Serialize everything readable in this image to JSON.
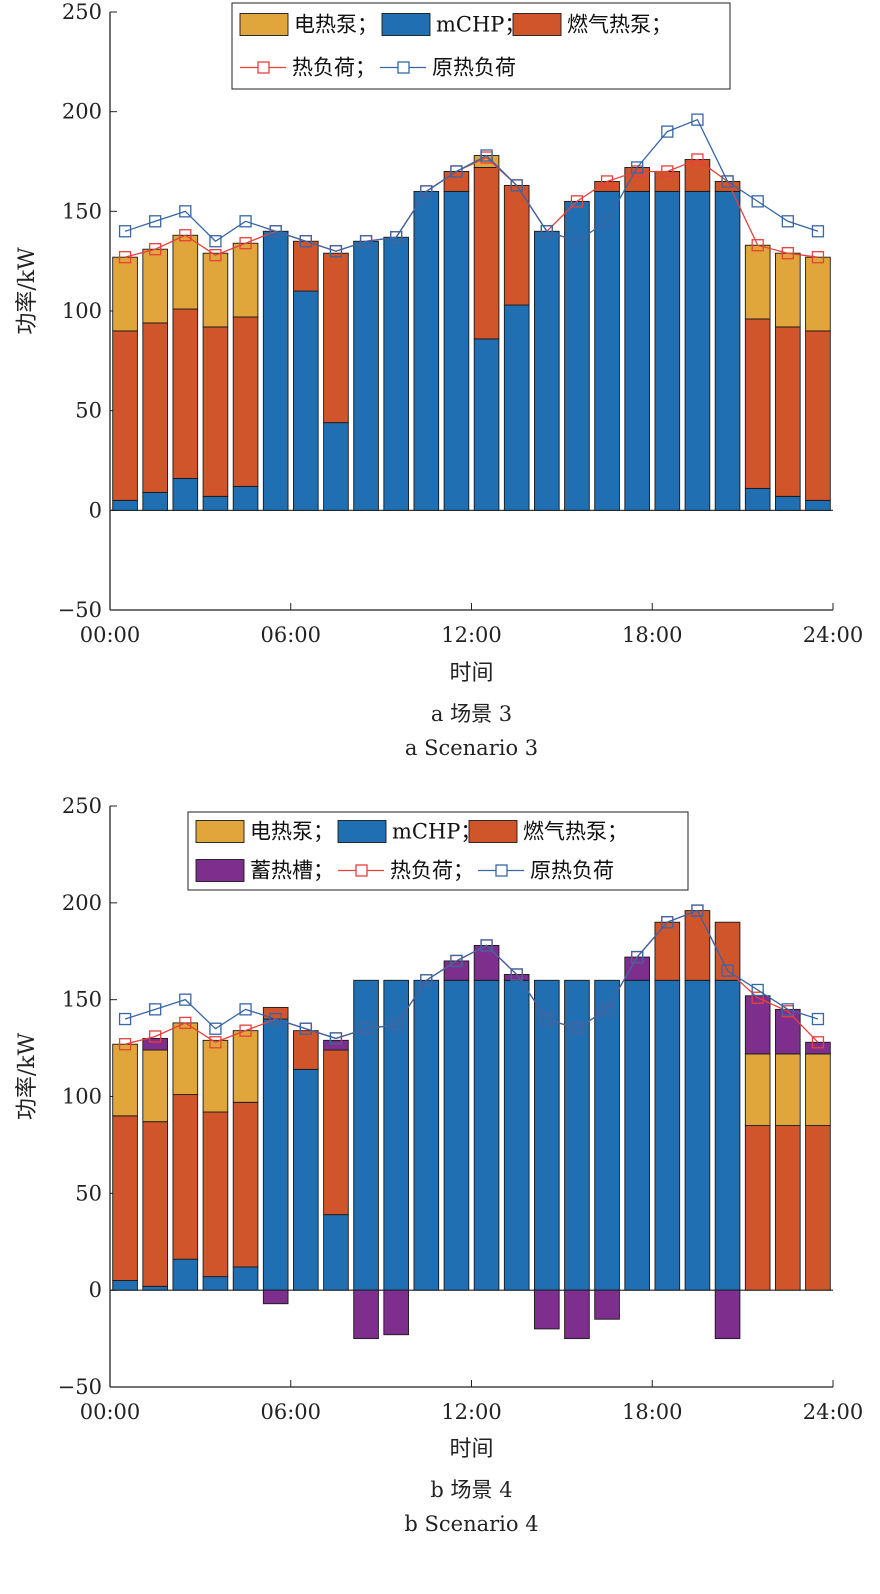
{
  "colors": {
    "electric_hp": "#E0A63C",
    "mchp": "#1F6FB2",
    "gas_hp": "#D1552A",
    "storage": "#7E2F8E",
    "heat_load_line": "#E8403A",
    "orig_load_line": "#3766A8"
  },
  "chart_data": [
    {
      "type": "bar",
      "stacked": true,
      "x_unit": "time of day",
      "xlabel": "时间",
      "ylabel": "功率/kW",
      "ylim": [
        -50,
        250
      ],
      "yticks": [
        "−50",
        "0",
        "50",
        "100",
        "150",
        "200",
        "250"
      ],
      "xticks": [
        "00:00",
        "06:00",
        "12:00",
        "18:00",
        "24:00"
      ],
      "caption_cn": "a  场景 3",
      "caption_en": "a  Scenario 3",
      "legend_position": "top-center",
      "legend_rows": [
        [
          {
            "key": "electric_hp",
            "label": "电热泵；",
            "kind": "bar"
          },
          {
            "key": "mchp",
            "label": "mCHP；",
            "kind": "bar"
          },
          {
            "key": "gas_hp",
            "label": "燃气热泵；",
            "kind": "bar"
          }
        ],
        [
          {
            "key": "heat_load",
            "label": "热负荷；",
            "kind": "line"
          },
          {
            "key": "orig_load",
            "label": "原热负荷",
            "kind": "line"
          }
        ]
      ],
      "hours": [
        0.5,
        1.5,
        2.5,
        3.5,
        4.5,
        5.5,
        6.5,
        7.5,
        8.5,
        9.5,
        10.5,
        11.5,
        12.5,
        13.5,
        14.5,
        15.5,
        16.5,
        17.5,
        18.5,
        19.5,
        20.5,
        21.5,
        22.5,
        23.5
      ],
      "series": [
        {
          "key": "mchp",
          "name": "mCHP",
          "values": [
            5,
            9,
            16,
            7,
            12,
            140,
            110,
            44,
            135,
            137,
            160,
            160,
            86,
            103,
            140,
            155,
            160,
            160,
            160,
            160,
            160,
            11,
            7,
            5
          ]
        },
        {
          "key": "gas_hp",
          "name": "燃气热泵",
          "values": [
            85,
            85,
            85,
            85,
            85,
            0,
            25,
            85,
            0,
            0,
            0,
            10,
            86,
            60,
            0,
            0,
            5,
            12,
            10,
            16,
            5,
            85,
            85,
            85
          ]
        },
        {
          "key": "electric_hp",
          "name": "电热泵",
          "values": [
            37,
            37,
            37,
            37,
            37,
            0,
            0,
            0,
            0,
            0,
            0,
            0,
            6,
            0,
            0,
            0,
            0,
            0,
            0,
            0,
            0,
            37,
            37,
            37
          ]
        },
        {
          "key": "storage",
          "name": "蓄热槽",
          "values": [
            0,
            0,
            0,
            0,
            0,
            0,
            0,
            0,
            0,
            0,
            0,
            0,
            0,
            0,
            0,
            0,
            0,
            0,
            0,
            0,
            0,
            0,
            0,
            0
          ]
        }
      ],
      "lines": [
        {
          "key": "heat_load",
          "name": "热负荷",
          "values": [
            127,
            131,
            138,
            128,
            134,
            140,
            135,
            130,
            135,
            137,
            160,
            170,
            177,
            163,
            140,
            155,
            165,
            170,
            170,
            176,
            165,
            133,
            129,
            127
          ]
        },
        {
          "key": "orig_load",
          "name": "原热负荷",
          "values": [
            140,
            145,
            150,
            135,
            145,
            140,
            135,
            130,
            135,
            137,
            160,
            170,
            178,
            163,
            140,
            135,
            145,
            172,
            190,
            196,
            165,
            155,
            145,
            140
          ]
        }
      ]
    },
    {
      "type": "bar",
      "stacked": true,
      "x_unit": "time of day",
      "xlabel": "时间",
      "ylabel": "功率/kW",
      "ylim": [
        -50,
        250
      ],
      "yticks": [
        "−50",
        "0",
        "50",
        "100",
        "150",
        "200",
        "250"
      ],
      "xticks": [
        "00:00",
        "06:00",
        "12:00",
        "18:00",
        "24:00"
      ],
      "caption_cn": "b  场景 4",
      "caption_en": "b  Scenario 4",
      "legend_position": "top-center",
      "legend_rows": [
        [
          {
            "key": "electric_hp",
            "label": "电热泵；",
            "kind": "bar"
          },
          {
            "key": "mchp",
            "label": "mCHP；",
            "kind": "bar"
          },
          {
            "key": "gas_hp",
            "label": "燃气热泵；",
            "kind": "bar"
          }
        ],
        [
          {
            "key": "storage",
            "label": "蓄热槽；",
            "kind": "bar"
          },
          {
            "key": "heat_load",
            "label": "热负荷；",
            "kind": "line"
          },
          {
            "key": "orig_load",
            "label": "原热负荷",
            "kind": "line"
          }
        ]
      ],
      "hours": [
        0.5,
        1.5,
        2.5,
        3.5,
        4.5,
        5.5,
        6.5,
        7.5,
        8.5,
        9.5,
        10.5,
        11.5,
        12.5,
        13.5,
        14.5,
        15.5,
        16.5,
        17.5,
        18.5,
        19.5,
        20.5,
        21.5,
        22.5,
        23.5
      ],
      "series": [
        {
          "key": "mchp",
          "name": "mCHP",
          "values": [
            5,
            2,
            16,
            7,
            12,
            140,
            114,
            39,
            160,
            160,
            160,
            160,
            160,
            160,
            160,
            160,
            160,
            160,
            160,
            160,
            160,
            0,
            0,
            0
          ]
        },
        {
          "key": "gas_hp",
          "name": "燃气热泵",
          "values": [
            85,
            85,
            85,
            85,
            85,
            6,
            20,
            85,
            0,
            0,
            0,
            0,
            0,
            0,
            0,
            0,
            0,
            0,
            30,
            36,
            30,
            85,
            85,
            85
          ]
        },
        {
          "key": "electric_hp",
          "name": "电热泵",
          "values": [
            37,
            37,
            37,
            37,
            37,
            0,
            0,
            0,
            0,
            0,
            0,
            0,
            0,
            0,
            0,
            0,
            0,
            0,
            0,
            0,
            0,
            37,
            37,
            37
          ]
        },
        {
          "key": "storage",
          "name": "蓄热槽",
          "values": [
            0,
            6,
            0,
            0,
            0,
            -7,
            0,
            5,
            -25,
            -23,
            0,
            10,
            18,
            3,
            -20,
            -25,
            -15,
            12,
            0,
            0,
            -25,
            30,
            23,
            6
          ]
        }
      ],
      "lines": [
        {
          "key": "heat_load",
          "name": "热负荷",
          "values": [
            127,
            131,
            138,
            128,
            134,
            140,
            135,
            130,
            135,
            137,
            160,
            170,
            178,
            163,
            140,
            135,
            145,
            172,
            190,
            196,
            165,
            151,
            144,
            128
          ]
        },
        {
          "key": "orig_load",
          "name": "原热负荷",
          "values": [
            140,
            145,
            150,
            135,
            145,
            140,
            135,
            130,
            135,
            137,
            160,
            170,
            178,
            163,
            140,
            135,
            145,
            172,
            190,
            196,
            165,
            155,
            145,
            140
          ]
        }
      ]
    }
  ]
}
